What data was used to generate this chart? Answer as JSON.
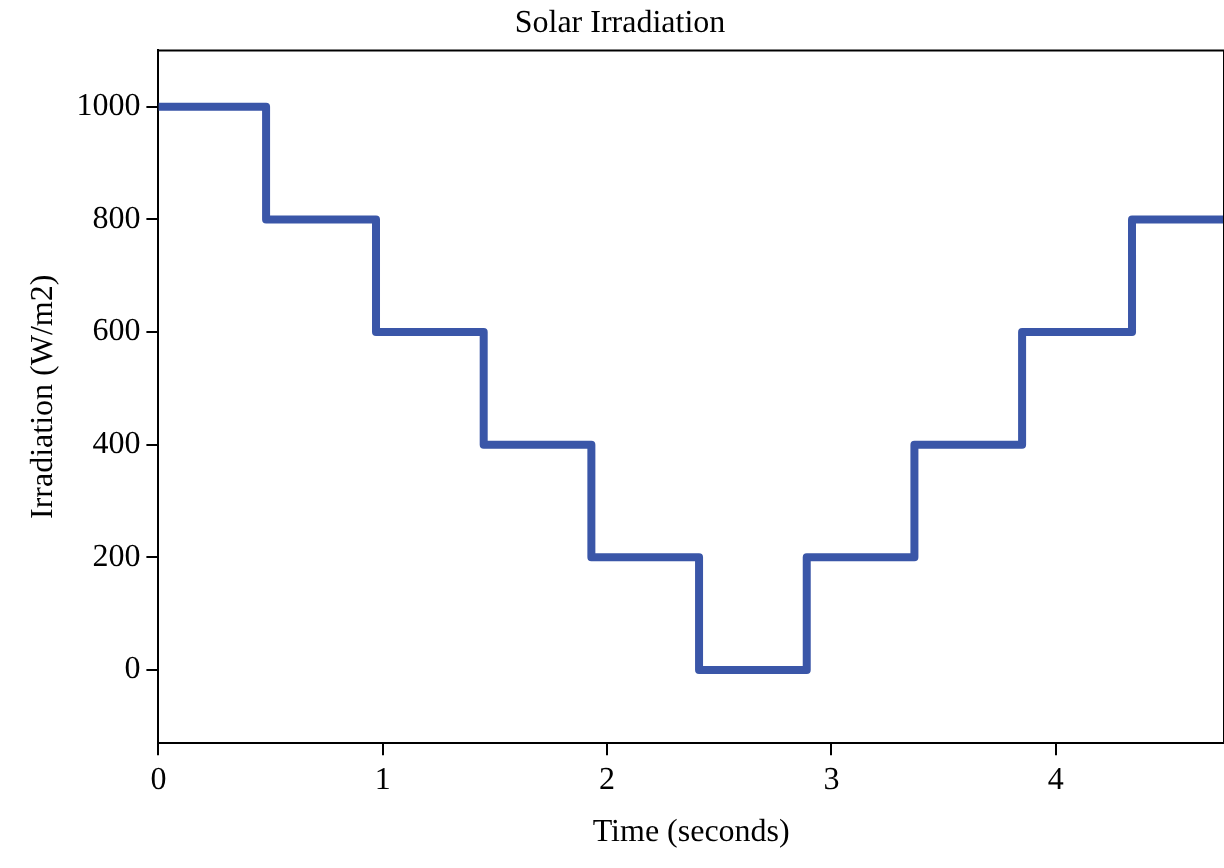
{
  "chart_data": {
    "type": "step",
    "title": "Solar Irradiation",
    "xlabel": "Time (seconds)",
    "ylabel": "Irradiation (W/m2)",
    "x": [
      0,
      0.48,
      0.97,
      1.45,
      1.93,
      2.41,
      2.89,
      3.37,
      3.85,
      4.34,
      4.75
    ],
    "series": [
      {
        "color": "#3a56a8",
        "values": [
          1000,
          800,
          600,
          400,
          200,
          0,
          200,
          400,
          600,
          800,
          800
        ]
      }
    ],
    "xlim": [
      0,
      4.75
    ],
    "xticks": [
      0,
      1,
      2,
      3,
      4
    ],
    "ylim": [
      -130,
      1100
    ],
    "yticks": [
      0,
      200,
      400,
      600,
      800,
      1000
    ],
    "grid": false,
    "legend": false,
    "marker": "none",
    "line_style": "solid"
  }
}
